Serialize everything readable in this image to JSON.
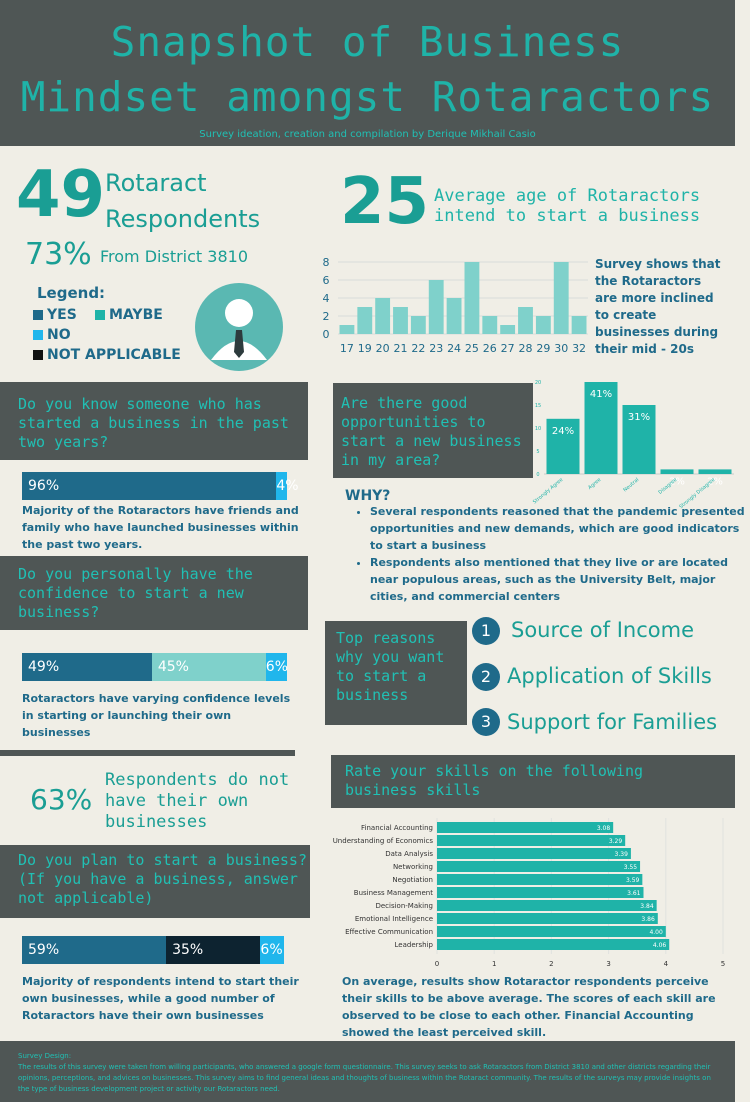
{
  "header": {
    "title_line1": "Snapshot of Business",
    "title_line2": "Mindset amongst Rotaractors",
    "subtitle": "Survey ideation, creation and compilation by Derique Mikhail Casio"
  },
  "respondents": {
    "count": "49",
    "label_line1": "Rotaract",
    "label_line2": "Respondents",
    "district_pct": "73%",
    "district_label": "From District 3810"
  },
  "legend": {
    "title": "Legend:",
    "items": [
      {
        "label": "YES",
        "color": "#1f6a8a"
      },
      {
        "label": "MAYBE",
        "color": "#1fb3a8"
      },
      {
        "label": "NO",
        "color": "#20b6ec"
      },
      {
        "label": "NOT APPLICABLE",
        "color": "#111111"
      }
    ]
  },
  "age": {
    "value": "25",
    "label": "Average age of Rotaractors intend to start a business",
    "note": "Survey shows that the Rotaractors are more inclined to create businesses during their mid - 20s"
  },
  "q1": {
    "question": "Do you know someone who has started a business in the past two years?",
    "yes": "96%",
    "no": "4%",
    "note": "Majority of the Rotaractors have friends and family who have launched businesses within the past two years."
  },
  "q2": {
    "question": "Do you personally have the confidence to start a new business?",
    "yes": "49%",
    "maybe": "45%",
    "no": "6%",
    "note": "Rotaractors have varying confidence levels in starting or launching their own businesses"
  },
  "own_business": {
    "pct": "63%",
    "label": "Respondents do not have their own businesses"
  },
  "q3": {
    "question_line1": "Do you plan to start a business?",
    "question_line2": "(If you have a business, answer not applicable)",
    "yes": "59%",
    "na": "35%",
    "no": "6%",
    "note": "Majority of respondents intend to start their own businesses, while a good number of Rotaractors have their own businesses"
  },
  "opportunities": {
    "question": "Are there good opportunities to start a new business in my area?",
    "why_title": "WHY?",
    "why_items": [
      "Several respondents reasoned that the pandemic presented opportunities and new demands, which are good indicators to start a business",
      "Respondents also mentioned that they live or are located near populous areas, such as the University Belt, major cities, and commercial centers"
    ]
  },
  "reasons": {
    "title": "Top reasons why you want to start a business",
    "items": [
      {
        "num": "1",
        "label": "Source of Income"
      },
      {
        "num": "2",
        "label": "Application of Skills"
      },
      {
        "num": "3",
        "label": "Support for Families"
      }
    ]
  },
  "skills": {
    "title": "Rate your skills on the following business skills",
    "note": "On average, results show Rotaractor respondents perceive their skills to be above average. The scores of each skill are observed to be close to each other. Financial Accounting showed the least perceived skill."
  },
  "footer": {
    "title": "Survey Design:",
    "text": "The results of this survey were taken from willing participants, who answered a google form questionnaire. This survey seeks to ask Rotaractors from District 3810 and other districts regarding their opinions, perceptions, and advices on businesses. This survey aims to find general ideas and thoughts of business within the Rotaract community. The results of the surveys may provide insights on the type of business development project or activity our Rotaractors need."
  },
  "chart_data": [
    {
      "type": "bar",
      "categories": [
        "17",
        "19",
        "20",
        "21",
        "22",
        "23",
        "24",
        "25",
        "26",
        "27",
        "28",
        "29",
        "30",
        "32"
      ],
      "values": [
        1,
        3,
        4,
        3,
        2,
        6,
        4,
        8,
        2,
        1,
        3,
        2,
        8,
        2
      ],
      "ylim": [
        0,
        8
      ],
      "yticks": [
        "0",
        "2",
        "4",
        "6",
        "8"
      ],
      "color": "#7fd1cb"
    },
    {
      "type": "bar",
      "categories": [
        "Strongly Agree",
        "Agree",
        "Neutral",
        "Disagree",
        "Strongly Disagree"
      ],
      "values": [
        12,
        20,
        15,
        1,
        1
      ],
      "labels": [
        "24%",
        "41%",
        "31%",
        "2%",
        "2%"
      ],
      "ylim": [
        0,
        20
      ],
      "yticks": [
        "0",
        "5",
        "10",
        "15",
        "20"
      ],
      "color": "#1fb3a8"
    },
    {
      "type": "bar",
      "orientation": "horizontal",
      "categories": [
        "Financial Accounting",
        "Understanding of Economics",
        "Data Analysis",
        "Networking",
        "Negotiation",
        "Business Management",
        "Decision-Making",
        "Emotional Intelligence",
        "Effective Communication",
        "Leadership"
      ],
      "values": [
        3.08,
        3.29,
        3.39,
        3.55,
        3.59,
        3.61,
        3.84,
        3.86,
        4.0,
        4.06
      ],
      "labels": [
        "3.08",
        "3.29",
        "3.39",
        "3.55",
        "3.59",
        "3.61",
        "3.84",
        "3.86",
        "4.00",
        "4.06"
      ],
      "xlim": [
        0,
        5
      ],
      "xticks": [
        "0",
        "1",
        "2",
        "3",
        "4",
        "5"
      ],
      "color": "#1fb3a8"
    }
  ]
}
